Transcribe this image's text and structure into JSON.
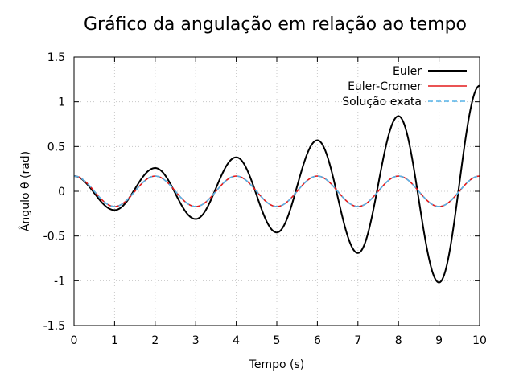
{
  "chart_data": {
    "type": "line",
    "title": "Gráfico da angulação em relação ao tempo",
    "xlabel": "Tempo (s)",
    "ylabel": "Ângulo θ (rad)",
    "xlim": [
      0,
      10
    ],
    "ylim": [
      -1.5,
      1.5
    ],
    "xticks": [
      0,
      1,
      2,
      3,
      4,
      5,
      6,
      7,
      8,
      9,
      10
    ],
    "xtick_labels": [
      "0",
      "1",
      "2",
      "3",
      "4",
      "5",
      "6",
      "7",
      "8",
      "9",
      "10"
    ],
    "yticks": [
      -1.5,
      -1,
      -0.5,
      0,
      0.5,
      1,
      1.5
    ],
    "ytick_labels": [
      "-1.5",
      "-1",
      "-0.5",
      "0",
      "0.5",
      "1",
      "1.5"
    ],
    "grid": true,
    "legend_position": "top-right",
    "series": [
      {
        "name": "Euler",
        "color": "#000000",
        "dash": "solid",
        "x": [
          0,
          0.5,
          1,
          1.5,
          2,
          2.5,
          3,
          3.5,
          4,
          4.5,
          5,
          5.5,
          6,
          6.5,
          7,
          7.5,
          8,
          8.5,
          9,
          9.5,
          10
        ],
        "y": [
          0.17,
          0.0,
          -0.21,
          0.0,
          0.26,
          0.0,
          -0.31,
          0.0,
          0.38,
          0.0,
          -0.46,
          0.0,
          0.57,
          0.0,
          -0.69,
          0.0,
          0.84,
          0.0,
          -1.02,
          0.0,
          1.18
        ]
      },
      {
        "name": "Euler-Cromer",
        "color": "#e31a1c",
        "dash": "solid",
        "x": [
          0,
          0.5,
          1,
          1.5,
          2,
          2.5,
          3,
          3.5,
          4,
          4.5,
          5,
          5.5,
          6,
          6.5,
          7,
          7.5,
          8,
          8.5,
          9,
          9.5,
          10
        ],
        "y": [
          0.17,
          0.0,
          -0.17,
          0.0,
          0.17,
          0.0,
          -0.17,
          0.0,
          0.17,
          0.0,
          -0.17,
          0.0,
          0.17,
          0.0,
          -0.17,
          0.0,
          0.17,
          0.0,
          -0.17,
          0.0,
          0.17
        ]
      },
      {
        "name": "Solução exata",
        "color": "#56b4e9",
        "dash": "dashed",
        "x": [
          0,
          0.5,
          1,
          1.5,
          2,
          2.5,
          3,
          3.5,
          4,
          4.5,
          5,
          5.5,
          6,
          6.5,
          7,
          7.5,
          8,
          8.5,
          9,
          9.5,
          10
        ],
        "y": [
          0.17,
          0.0,
          -0.17,
          0.0,
          0.17,
          0.0,
          -0.17,
          0.0,
          0.17,
          0.0,
          -0.17,
          0.0,
          0.17,
          0.0,
          -0.17,
          0.0,
          0.17,
          0.0,
          -0.17,
          0.0,
          0.17
        ]
      }
    ]
  }
}
